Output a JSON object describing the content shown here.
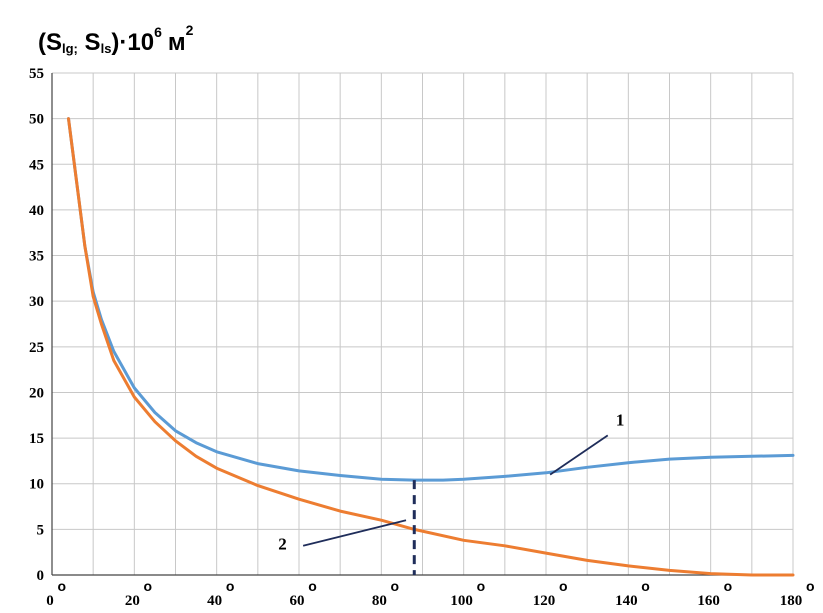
{
  "chart_data": {
    "type": "line",
    "title": "",
    "ylabel": {
      "prefix": "(S",
      "sub1": "lg;",
      "mid": " S",
      "sub2": "ls",
      "close": ")·10",
      "exp": "6",
      "unit": "м",
      "unit_exp": "2"
    },
    "xlabel": "",
    "xlim": [
      0,
      180
    ],
    "ylim": [
      0,
      55
    ],
    "grid": true,
    "x_ticks": [
      0,
      20,
      40,
      60,
      80,
      100,
      120,
      140,
      160,
      180
    ],
    "y_ticks": [
      0,
      5,
      10,
      15,
      20,
      25,
      30,
      35,
      40,
      45,
      50,
      55
    ],
    "degree_symbol": "o",
    "series": [
      {
        "name": "1",
        "color": "#5b9bd5",
        "x": [
          4,
          6,
          8,
          10,
          12,
          15,
          20,
          25,
          30,
          35,
          40,
          50,
          60,
          70,
          80,
          88,
          95,
          100,
          110,
          120,
          130,
          140,
          150,
          160,
          170,
          180
        ],
        "y": [
          50,
          43,
          36,
          31,
          28,
          24.5,
          20.5,
          17.8,
          15.8,
          14.5,
          13.5,
          12.2,
          11.4,
          10.9,
          10.5,
          10.4,
          10.4,
          10.5,
          10.8,
          11.2,
          11.8,
          12.3,
          12.7,
          12.9,
          13.0,
          13.1
        ]
      },
      {
        "name": "2",
        "color": "#ed7d31",
        "x": [
          4,
          6,
          8,
          10,
          12,
          15,
          20,
          25,
          30,
          35,
          40,
          50,
          60,
          70,
          80,
          88,
          100,
          110,
          120,
          130,
          140,
          150,
          160,
          170,
          180
        ],
        "y": [
          50,
          43,
          36,
          30.5,
          27.5,
          23.5,
          19.5,
          16.8,
          14.7,
          13.0,
          11.7,
          9.8,
          8.3,
          7.0,
          6.0,
          5.0,
          3.8,
          3.2,
          2.4,
          1.6,
          1.0,
          0.5,
          0.15,
          0.0,
          0.0
        ]
      }
    ],
    "annotations": [
      {
        "type": "vline",
        "x": 88,
        "y_top": 10.4,
        "style": "dashed",
        "color": "#1f2d5a"
      },
      {
        "type": "leader",
        "label": "1",
        "from": [
          121,
          11.0
        ],
        "to": [
          135,
          15.3
        ],
        "text_at": [
          138,
          16.4
        ]
      },
      {
        "type": "leader",
        "label": "2",
        "from": [
          86,
          6.0
        ],
        "to": [
          61,
          3.2
        ],
        "text_at": [
          56,
          2.8
        ]
      }
    ]
  }
}
